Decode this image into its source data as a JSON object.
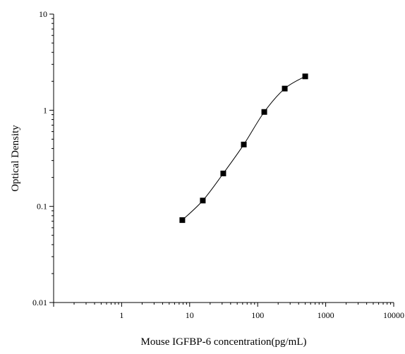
{
  "chart_data": {
    "type": "scatter",
    "title": "",
    "xlabel": "Mouse IGFBP-6 concentration(pg/mL)",
    "ylabel": "Optical Density",
    "xscale": "log",
    "yscale": "log",
    "xlim": [
      0.1,
      10000
    ],
    "ylim": [
      0.01,
      10
    ],
    "x_ticks": [
      "1",
      "10",
      "100",
      "1000",
      "10000"
    ],
    "y_ticks": [
      "0.01",
      "0.1",
      "1",
      "10"
    ],
    "grid": false,
    "legend": "none",
    "marker": "square",
    "fit_line": true,
    "colors": {
      "points": "#000000",
      "line": "#000000",
      "axes": "#000000"
    },
    "series": [
      {
        "x": [
          7.8,
          15.6,
          31.2,
          62.5,
          125,
          250,
          500
        ],
        "y": [
          0.072,
          0.115,
          0.22,
          0.44,
          0.96,
          1.68,
          2.25
        ]
      }
    ]
  }
}
